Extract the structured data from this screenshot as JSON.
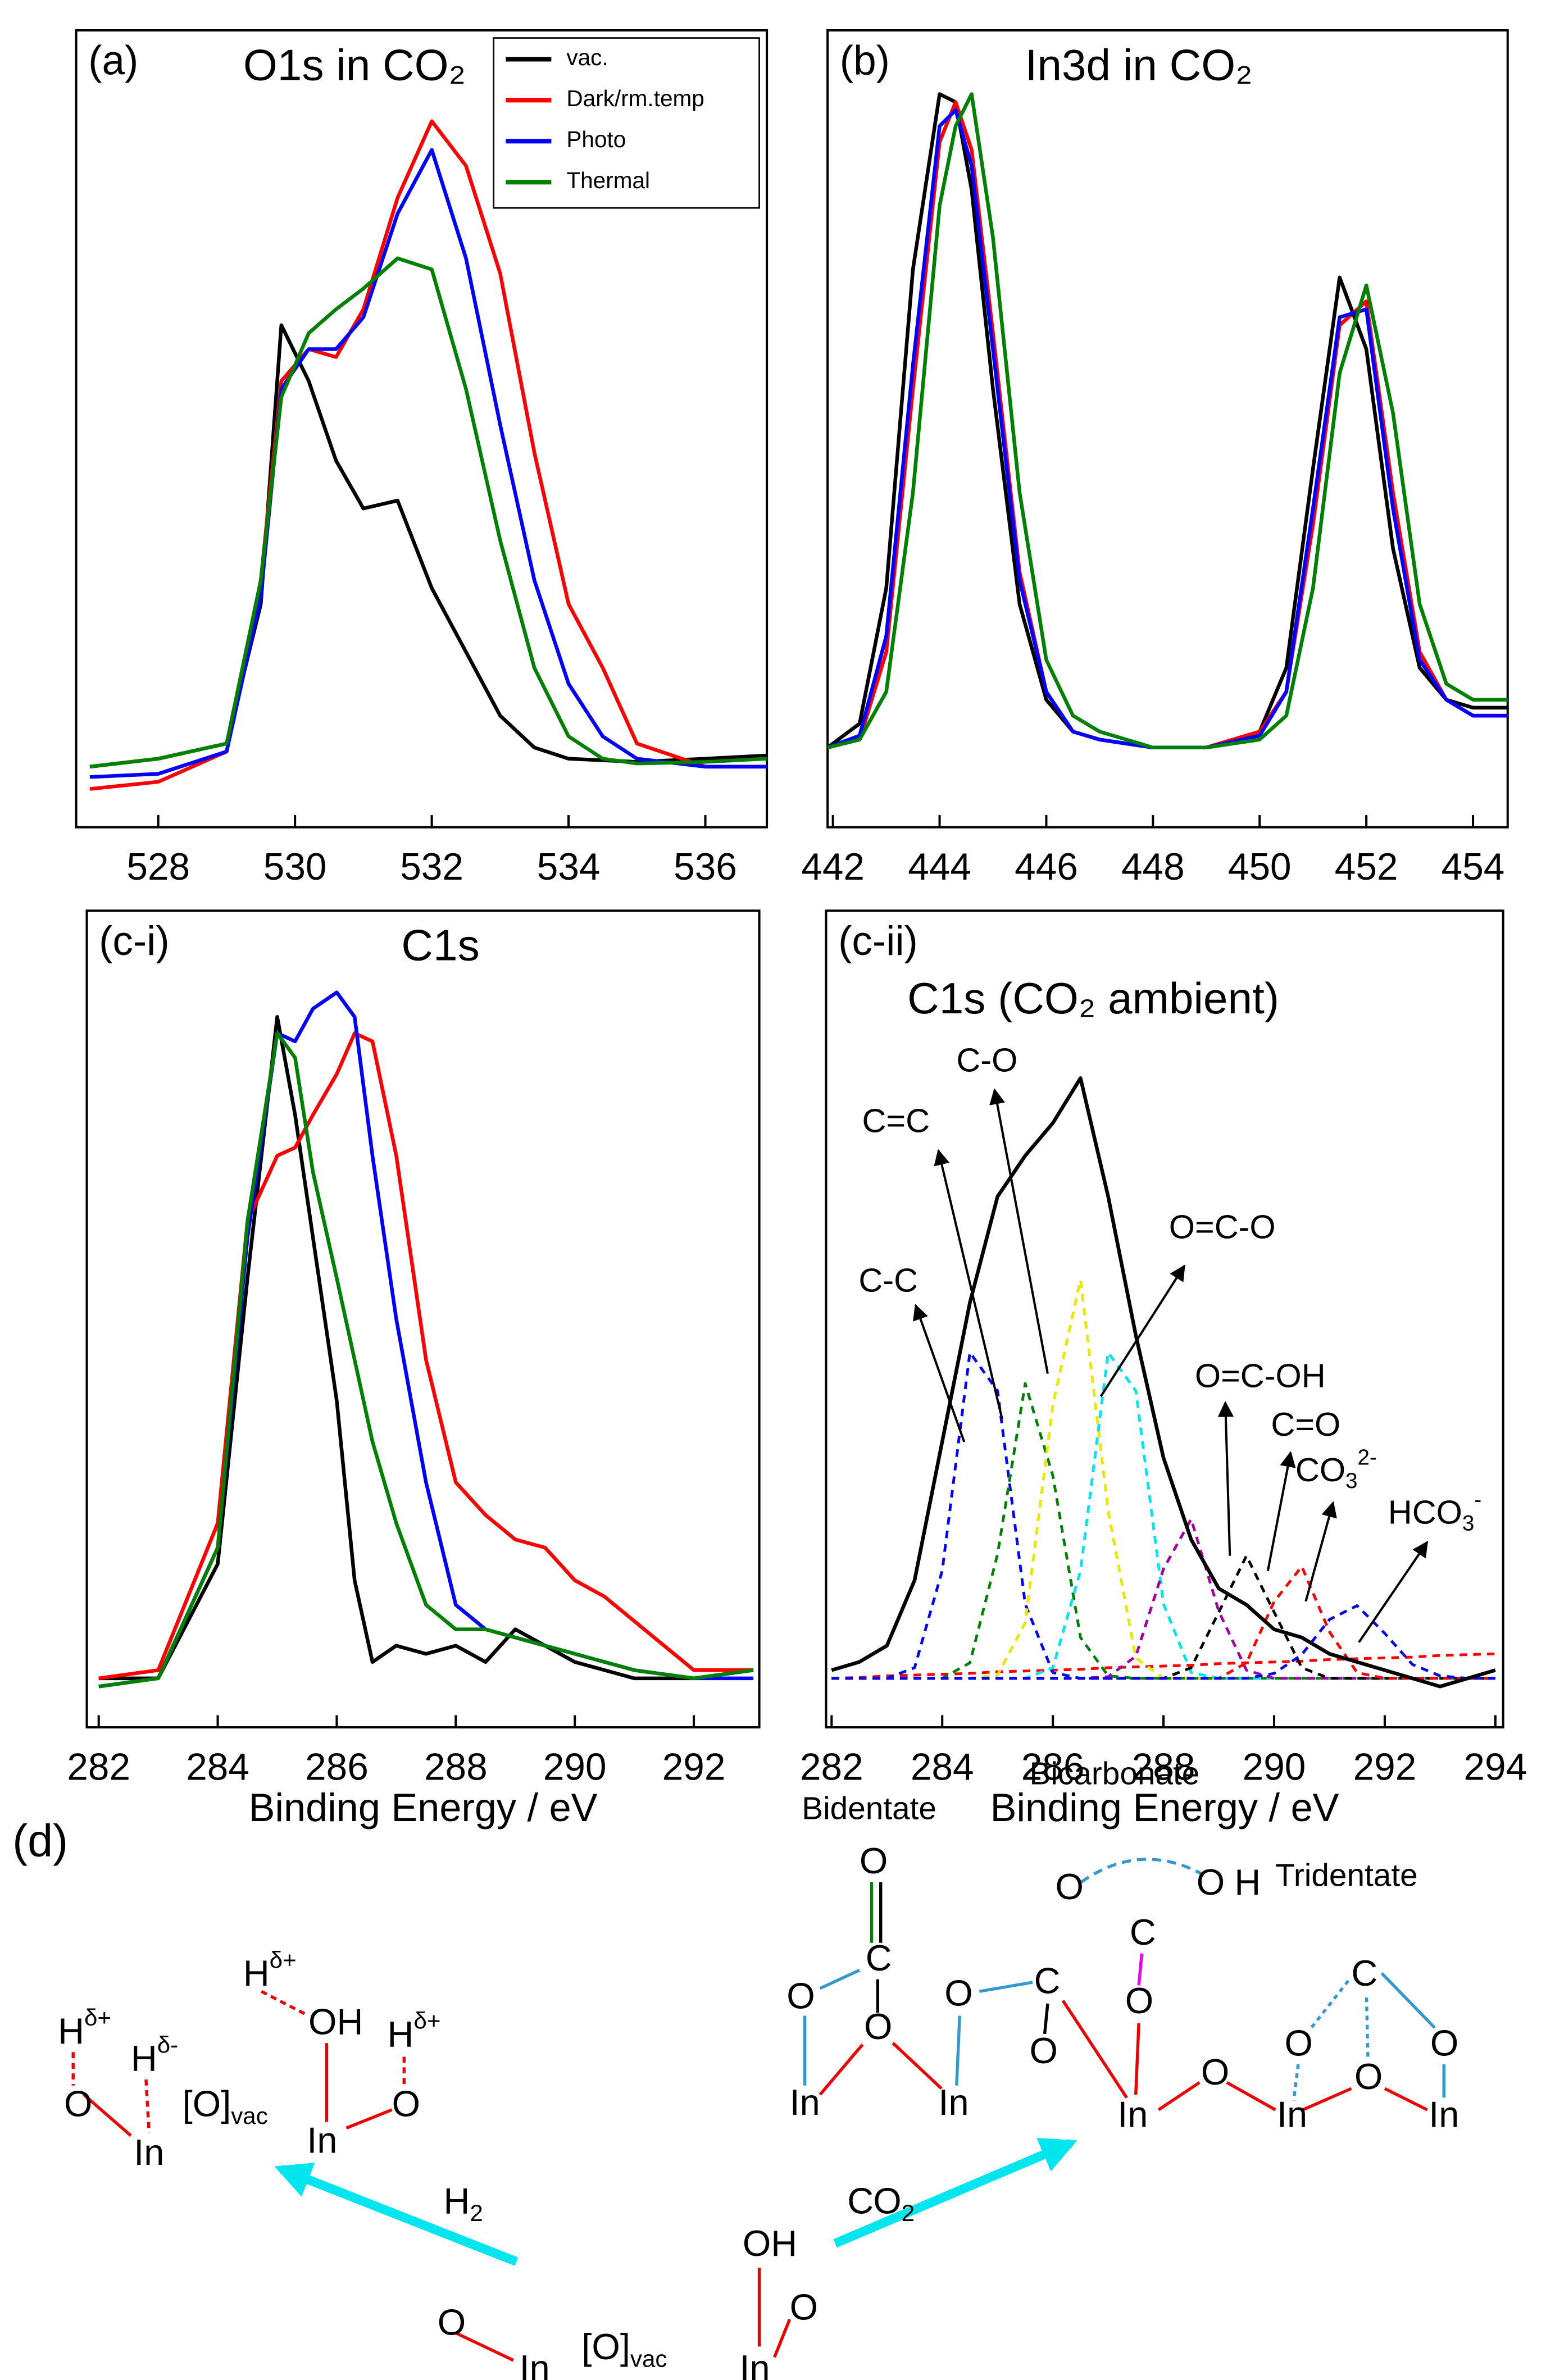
{
  "chart_data": [
    {
      "type": "line",
      "panel_label": "(a)",
      "title": "O1s in CO₂",
      "legend": "upper right",
      "x": [
        527,
        528,
        529,
        529.5,
        529.8,
        530.2,
        530.6,
        531,
        531.5,
        532,
        532.5,
        533,
        533.5,
        534,
        534.5,
        535,
        536,
        536.9
      ],
      "xlim": [
        526.8,
        536.9
      ],
      "ylim": [
        0,
        1
      ],
      "xticks": [
        528,
        530,
        532,
        534,
        536
      ],
      "series": [
        {
          "name": "vac.",
          "color": "#000000",
          "values": [
            0.076,
            0.086,
            0.105,
            0.28,
            0.63,
            0.56,
            0.46,
            0.4,
            0.41,
            0.3,
            0.22,
            0.14,
            0.1,
            0.086,
            0.084,
            0.082,
            0.086,
            0.09
          ]
        },
        {
          "name": "Dark/rm.temp",
          "color": "#ff0000",
          "values": [
            0.048,
            0.057,
            0.095,
            0.31,
            0.56,
            0.6,
            0.59,
            0.65,
            0.79,
            0.886,
            0.83,
            0.695,
            0.47,
            0.28,
            0.2,
            0.105,
            0.076,
            0.076
          ]
        },
        {
          "name": "Photo",
          "color": "#0000ff",
          "values": [
            0.063,
            0.067,
            0.095,
            0.29,
            0.55,
            0.6,
            0.6,
            0.64,
            0.77,
            0.85,
            0.714,
            0.505,
            0.31,
            0.18,
            0.114,
            0.086,
            0.076,
            0.076
          ]
        },
        {
          "name": "Thermal",
          "color": "#008000",
          "values": [
            0.076,
            0.086,
            0.105,
            0.31,
            0.54,
            0.62,
            0.65,
            0.676,
            0.714,
            0.7,
            0.55,
            0.36,
            0.2,
            0.114,
            0.086,
            0.08,
            0.082,
            0.086
          ]
        }
      ]
    },
    {
      "type": "line",
      "panel_label": "(b)",
      "title": "In3d in CO₂",
      "x": [
        441.9,
        442.5,
        443,
        443.5,
        444,
        444.3,
        444.6,
        445,
        445.5,
        446,
        446.5,
        447,
        448,
        449,
        450,
        450.5,
        451,
        451.5,
        452,
        452.5,
        453,
        453.5,
        454,
        454.65
      ],
      "xlim": [
        441.9,
        454.65
      ],
      "ylim": [
        0,
        1
      ],
      "xticks": [
        442,
        444,
        446,
        448,
        450,
        452,
        454
      ],
      "series": [
        {
          "color": "#000000",
          "values": [
            0.1,
            0.13,
            0.3,
            0.7,
            0.92,
            0.91,
            0.8,
            0.55,
            0.28,
            0.16,
            0.12,
            0.11,
            0.1,
            0.1,
            0.12,
            0.2,
            0.45,
            0.69,
            0.6,
            0.35,
            0.2,
            0.16,
            0.15,
            0.15
          ]
        },
        {
          "color": "#ff0000",
          "values": [
            0.1,
            0.11,
            0.22,
            0.55,
            0.86,
            0.91,
            0.85,
            0.62,
            0.32,
            0.17,
            0.12,
            0.11,
            0.1,
            0.1,
            0.12,
            0.17,
            0.38,
            0.63,
            0.66,
            0.42,
            0.22,
            0.16,
            0.14,
            0.14
          ]
        },
        {
          "color": "#0000ff",
          "values": [
            0.1,
            0.115,
            0.24,
            0.58,
            0.88,
            0.9,
            0.83,
            0.6,
            0.31,
            0.17,
            0.12,
            0.11,
            0.1,
            0.1,
            0.115,
            0.17,
            0.4,
            0.64,
            0.65,
            0.4,
            0.21,
            0.16,
            0.14,
            0.14
          ]
        },
        {
          "color": "#008000",
          "values": [
            0.1,
            0.11,
            0.17,
            0.42,
            0.78,
            0.88,
            0.92,
            0.74,
            0.42,
            0.21,
            0.14,
            0.12,
            0.1,
            0.1,
            0.11,
            0.14,
            0.3,
            0.57,
            0.68,
            0.52,
            0.28,
            0.18,
            0.16,
            0.16
          ]
        }
      ]
    },
    {
      "type": "line",
      "panel_label": "(c-i)",
      "title": "C1s",
      "xlabel": "Binding Energy / eV",
      "x": [
        282,
        283,
        284,
        284.5,
        285,
        285.3,
        285.6,
        286,
        286.3,
        286.6,
        287,
        287.5,
        288,
        288.5,
        289,
        289.5,
        290,
        290.5,
        291,
        292,
        293
      ],
      "xlim": [
        281.8,
        293.1
      ],
      "ylim": [
        0,
        1
      ],
      "xticks": [
        282,
        284,
        286,
        288,
        290,
        292
      ],
      "series": [
        {
          "color": "#000000",
          "values": [
            0.06,
            0.06,
            0.2,
            0.55,
            0.87,
            0.75,
            0.6,
            0.4,
            0.18,
            0.08,
            0.1,
            0.09,
            0.1,
            0.08,
            0.12,
            0.1,
            0.08,
            0.07,
            0.06,
            0.06,
            0.07
          ]
        },
        {
          "color": "#ff0000",
          "values": [
            0.06,
            0.07,
            0.25,
            0.62,
            0.7,
            0.71,
            0.75,
            0.8,
            0.85,
            0.84,
            0.7,
            0.45,
            0.3,
            0.26,
            0.23,
            0.22,
            0.18,
            0.16,
            0.13,
            0.07,
            0.07
          ]
        },
        {
          "color": "#0000ff",
          "values": [
            0.05,
            0.06,
            0.22,
            0.6,
            0.85,
            0.84,
            0.88,
            0.9,
            0.87,
            0.7,
            0.5,
            0.3,
            0.15,
            0.12,
            0.11,
            0.1,
            0.09,
            0.08,
            0.07,
            0.06,
            0.06
          ]
        },
        {
          "color": "#008000",
          "values": [
            0.05,
            0.06,
            0.22,
            0.62,
            0.85,
            0.82,
            0.68,
            0.55,
            0.45,
            0.35,
            0.25,
            0.15,
            0.12,
            0.12,
            0.11,
            0.1,
            0.09,
            0.08,
            0.07,
            0.06,
            0.07
          ]
        }
      ]
    },
    {
      "type": "line",
      "panel_label": "(c-ii)",
      "title": "C1s (CO₂ ambient)",
      "xlabel": "Binding Energy / eV",
      "x": [
        282,
        282.5,
        283,
        283.5,
        284,
        284.5,
        285,
        285.5,
        286,
        286.5,
        287,
        287.5,
        288,
        288.5,
        289,
        289.5,
        290,
        290.5,
        291,
        291.5,
        292,
        292.5,
        293,
        293.5,
        294
      ],
      "xlim": [
        281.9,
        294.14
      ],
      "ylim": [
        0,
        1
      ],
      "xticks": [
        282,
        284,
        286,
        288,
        290,
        292,
        294
      ],
      "series": [
        {
          "color": "#ff0000",
          "style": "dashed",
          "values": [
            0.06,
            0.061,
            0.063,
            0.064,
            0.065,
            0.066,
            0.068,
            0.069,
            0.07,
            0.071,
            0.073,
            0.074,
            0.075,
            0.076,
            0.078,
            0.079,
            0.08,
            0.081,
            0.083,
            0.084,
            0.085,
            0.086,
            0.088,
            0.089,
            0.09
          ]
        },
        {
          "color": "#0000ff",
          "style": "dashed",
          "values": [
            0.06,
            0.06,
            0.06,
            0.073,
            0.192,
            0.459,
            0.412,
            0.151,
            0.067,
            0.06,
            0.06,
            0.06,
            0.06,
            0.06,
            0.06,
            0.06,
            0.06,
            0.06,
            0.06,
            0.06,
            0.06,
            0.06,
            0.06,
            0.06,
            0.06
          ]
        },
        {
          "color": "#008000",
          "style": "dashed",
          "values": [
            0.06,
            0.06,
            0.06,
            0.06,
            0.06,
            0.079,
            0.212,
            0.421,
            0.308,
            0.11,
            0.063,
            0.06,
            0.06,
            0.06,
            0.06,
            0.06,
            0.06,
            0.06,
            0.06,
            0.06,
            0.06,
            0.06,
            0.06,
            0.06,
            0.06
          ]
        },
        {
          "color": "#e8e800",
          "style": "dashed",
          "values": [
            0.06,
            0.06,
            0.06,
            0.06,
            0.06,
            0.06,
            0.064,
            0.128,
            0.395,
            0.548,
            0.265,
            0.085,
            0.06,
            0.06,
            0.06,
            0.06,
            0.06,
            0.06,
            0.06,
            0.06,
            0.06,
            0.06,
            0.06,
            0.06,
            0.06
          ]
        },
        {
          "color": "#00e5ee",
          "style": "dashed",
          "values": [
            0.06,
            0.06,
            0.06,
            0.06,
            0.06,
            0.06,
            0.06,
            0.06,
            0.073,
            0.192,
            0.459,
            0.412,
            0.151,
            0.067,
            0.06,
            0.06,
            0.06,
            0.06,
            0.06,
            0.06,
            0.06,
            0.06,
            0.06,
            0.06,
            0.06
          ]
        },
        {
          "color": "#a000a0",
          "style": "dashed",
          "values": [
            0.06,
            0.06,
            0.06,
            0.06,
            0.06,
            0.06,
            0.06,
            0.06,
            0.06,
            0.06,
            0.062,
            0.087,
            0.194,
            0.255,
            0.142,
            0.07,
            0.06,
            0.06,
            0.06,
            0.06,
            0.06,
            0.06,
            0.06,
            0.06,
            0.06
          ]
        },
        {
          "color": "#000000",
          "style": "dashed",
          "values": [
            0.06,
            0.06,
            0.06,
            0.06,
            0.06,
            0.06,
            0.06,
            0.06,
            0.06,
            0.06,
            0.06,
            0.06,
            0.06,
            0.073,
            0.141,
            0.21,
            0.141,
            0.073,
            0.06,
            0.06,
            0.06,
            0.06,
            0.06,
            0.06,
            0.06
          ]
        },
        {
          "color": "#ff0000",
          "style": "dashed",
          "values": [
            0.06,
            0.06,
            0.06,
            0.06,
            0.06,
            0.06,
            0.06,
            0.06,
            0.06,
            0.06,
            0.06,
            0.06,
            0.06,
            0.06,
            0.06,
            0.079,
            0.154,
            0.197,
            0.117,
            0.067,
            0.06,
            0.06,
            0.06,
            0.06,
            0.06
          ]
        },
        {
          "color": "#0000ff",
          "style": "dashed",
          "values": [
            0.06,
            0.06,
            0.06,
            0.06,
            0.06,
            0.06,
            0.06,
            0.06,
            0.06,
            0.06,
            0.06,
            0.06,
            0.06,
            0.06,
            0.06,
            0.06,
            0.066,
            0.089,
            0.132,
            0.149,
            0.115,
            0.077,
            0.063,
            0.06,
            0.06
          ]
        },
        {
          "color": "#000000",
          "values": [
            0.07,
            0.08,
            0.1,
            0.18,
            0.35,
            0.52,
            0.65,
            0.7,
            0.74,
            0.795,
            0.65,
            0.48,
            0.33,
            0.23,
            0.17,
            0.15,
            0.12,
            0.11,
            0.09,
            0.08,
            0.07,
            0.06,
            0.05,
            0.06,
            0.07
          ]
        }
      ],
      "annotations": [
        {
          "text": "C-C"
        },
        {
          "text": "C=C"
        },
        {
          "text": "C-O"
        },
        {
          "text": "O=C-O"
        },
        {
          "text": "O=C-OH"
        },
        {
          "text": "C=O"
        },
        {
          "text": "CO",
          "sub": "3",
          "sup": "2-"
        },
        {
          "text": "HCO",
          "sub": "3",
          "sup": "-"
        }
      ]
    }
  ],
  "diagram": {
    "label": "(d)",
    "texts": [
      {
        "text": "H",
        "sup": "δ+"
      },
      {
        "text": "H",
        "sup": "δ-"
      },
      {
        "text": "O"
      },
      {
        "text": "In"
      },
      {
        "text": "[O]",
        "sub": "vac"
      },
      {
        "text": "H",
        "sup": "δ+"
      },
      {
        "text": "OH"
      },
      {
        "text": "H",
        "sup": "δ+"
      },
      {
        "text": "In"
      },
      {
        "text": "O"
      },
      {
        "text": "H",
        "sub": "2"
      },
      {
        "text": "O"
      },
      {
        "text": "In"
      },
      {
        "text": "[O]",
        "sub": "vac"
      },
      {
        "text": "OH"
      },
      {
        "text": "In"
      },
      {
        "text": "O"
      },
      {
        "text": "C"
      },
      {
        "text": "O",
        "sub": "2"
      },
      {
        "text": "Bidentate"
      },
      {
        "text": "Bicarbonate"
      },
      {
        "text": "Tridentate"
      },
      {
        "text": "O"
      },
      {
        "text": "C"
      },
      {
        "text": "O"
      },
      {
        "text": "O"
      },
      {
        "text": "In"
      },
      {
        "text": "In"
      },
      {
        "text": "O"
      },
      {
        "text": "C"
      },
      {
        "text": "O"
      },
      {
        "text": "O"
      },
      {
        "text": "O"
      },
      {
        "text": "H"
      },
      {
        "text": "C"
      },
      {
        "text": "O"
      },
      {
        "text": "In"
      },
      {
        "text": "O"
      },
      {
        "text": "In"
      },
      {
        "text": "C"
      },
      {
        "text": "O"
      },
      {
        "text": "O"
      },
      {
        "text": "O"
      },
      {
        "text": "In"
      }
    ]
  }
}
